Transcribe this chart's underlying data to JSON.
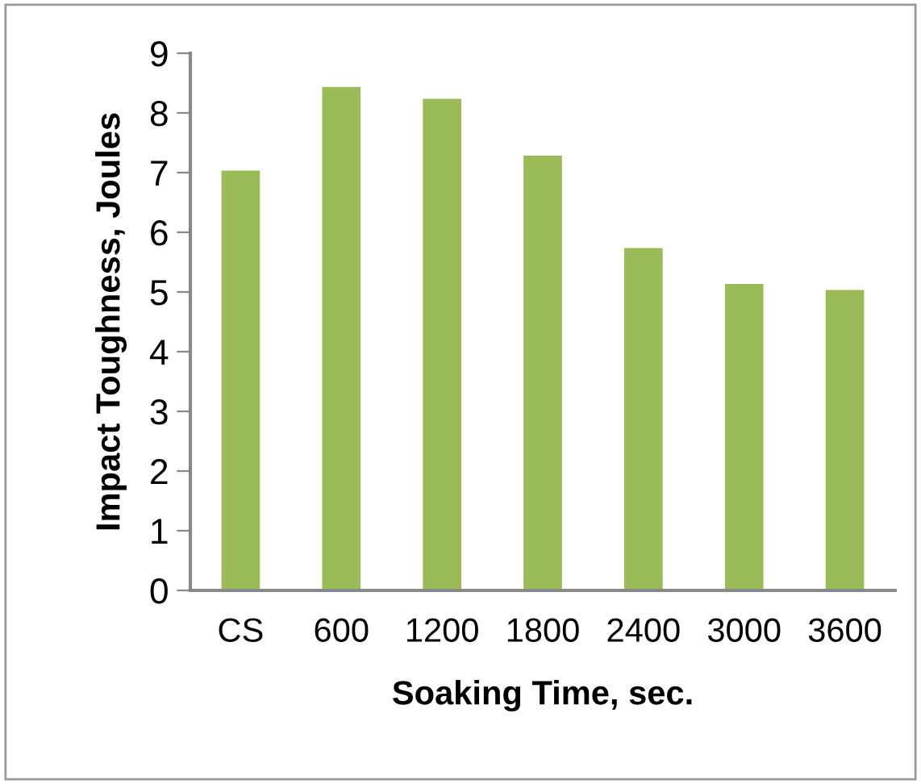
{
  "chart_data": {
    "type": "bar",
    "xlabel": "Soaking Time, sec.",
    "ylabel": "Impact Toughness, Joules",
    "categories": [
      "CS",
      "600",
      "1200",
      "1800",
      "2400",
      "3000",
      "3600"
    ],
    "values": [
      7.05,
      8.45,
      8.25,
      7.3,
      5.75,
      5.15,
      5.05
    ],
    "color": "#9bbb59",
    "ylim": [
      0,
      9
    ],
    "yticks": [
      0,
      1,
      2,
      3,
      4,
      5,
      6,
      7,
      8,
      9
    ],
    "grid": false,
    "legend": false
  }
}
